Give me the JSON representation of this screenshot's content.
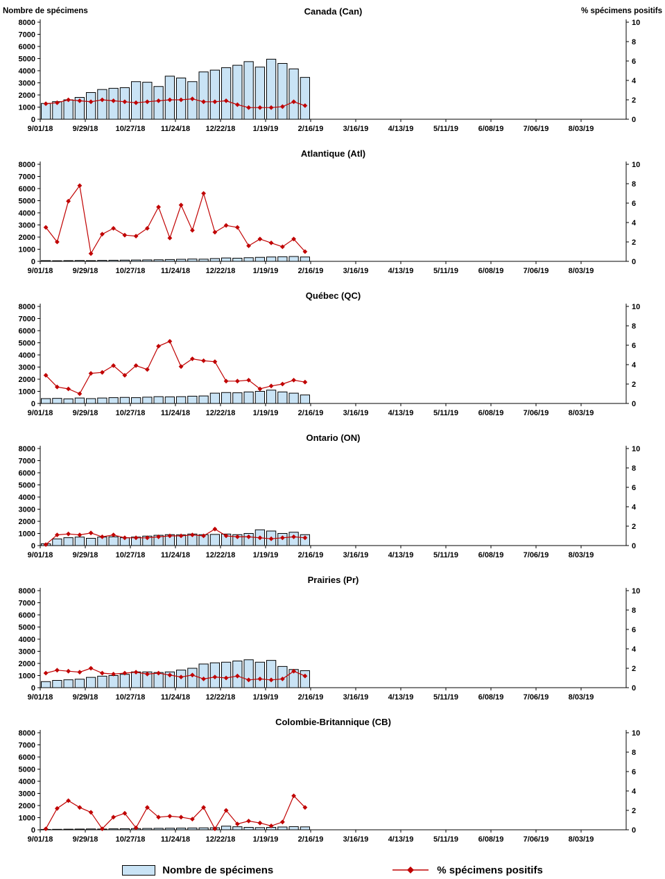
{
  "axis_titles": {
    "left": "Nombre de spécimens",
    "right": "% spécimens positifs"
  },
  "legend": {
    "bars_label": "Nombre de spécimens",
    "line_label": "% spécimens positifs"
  },
  "colors": {
    "bar_fill": "#C9E3F5",
    "bar_border": "#000000",
    "line": "#C00000"
  },
  "x_axis": {
    "tick_labels": [
      "9/01/18",
      "9/29/18",
      "10/27/18",
      "11/24/18",
      "12/22/18",
      "1/19/19",
      "2/16/19",
      "3/16/19",
      "4/13/19",
      "5/11/19",
      "6/08/19",
      "7/06/19",
      "8/03/19"
    ],
    "total_weeks": 52,
    "weeks_per_tick": 4
  },
  "left_axis": {
    "min": 0,
    "max": 8000,
    "step": 1000
  },
  "right_axis": {
    "min": 0,
    "max": 10,
    "step": 2
  },
  "categories_weekly": [
    "9/01/18",
    "9/08/18",
    "9/15/18",
    "9/22/18",
    "9/29/18",
    "10/06/18",
    "10/13/18",
    "10/20/18",
    "10/27/18",
    "11/03/18",
    "11/10/18",
    "11/17/18",
    "11/24/18",
    "12/01/18",
    "12/08/18",
    "12/15/18",
    "12/22/18",
    "12/29/18",
    "1/05/19",
    "1/12/19",
    "1/19/19",
    "1/26/19",
    "2/02/19",
    "2/09/19"
  ],
  "chart_data": [
    {
      "id": "canada",
      "type": "bar+line",
      "title": "Canada (Can)",
      "series": [
        {
          "name": "Nombre de spécimens",
          "axis": "left",
          "values": [
            1300,
            1450,
            1600,
            1800,
            2200,
            2450,
            2550,
            2600,
            3100,
            3050,
            2700,
            3550,
            3400,
            3100,
            3900,
            4050,
            4250,
            4450,
            4750,
            4300,
            4950,
            4600,
            4150,
            3450
          ]
        },
        {
          "name": "% spécimens positifs",
          "axis": "right",
          "values": [
            1.6,
            1.7,
            2.0,
            1.9,
            1.8,
            2.0,
            1.9,
            1.8,
            1.7,
            1.8,
            1.9,
            2.0,
            2.0,
            2.1,
            1.8,
            1.8,
            1.9,
            1.5,
            1.2,
            1.2,
            1.2,
            1.3,
            1.8,
            1.4
          ]
        }
      ]
    },
    {
      "id": "atlantique",
      "type": "bar+line",
      "title": "Atlantique (Atl)",
      "series": [
        {
          "name": "Nombre de spécimens",
          "axis": "left",
          "values": [
            60,
            50,
            60,
            70,
            60,
            80,
            90,
            100,
            110,
            120,
            130,
            150,
            170,
            190,
            180,
            230,
            280,
            260,
            300,
            330,
            360,
            380,
            400,
            360
          ]
        },
        {
          "name": "% spécimens positifs",
          "axis": "right",
          "values": [
            3.5,
            2.0,
            6.2,
            7.8,
            0.8,
            2.8,
            3.4,
            2.7,
            2.6,
            3.4,
            5.6,
            2.4,
            5.8,
            3.2,
            7.0,
            3.0,
            3.7,
            3.5,
            1.6,
            2.3,
            1.9,
            1.5,
            2.3,
            1.0
          ]
        }
      ]
    },
    {
      "id": "quebec",
      "type": "bar+line",
      "title": "Québec (QC)",
      "series": [
        {
          "name": "Nombre de spécimens",
          "axis": "left",
          "values": [
            400,
            420,
            380,
            450,
            400,
            450,
            480,
            500,
            480,
            520,
            560,
            540,
            560,
            600,
            620,
            850,
            900,
            880,
            950,
            1000,
            1100,
            950,
            850,
            700
          ]
        },
        {
          "name": "% spécimens positifs",
          "axis": "right",
          "values": [
            2.9,
            1.7,
            1.5,
            1.0,
            3.1,
            3.2,
            3.9,
            2.9,
            3.9,
            3.5,
            5.9,
            6.4,
            3.8,
            4.6,
            4.4,
            4.3,
            2.3,
            2.3,
            2.4,
            1.5,
            1.8,
            2.0,
            2.4,
            2.2
          ]
        }
      ]
    },
    {
      "id": "ontario",
      "type": "bar+line",
      "title": "Ontario (ON)",
      "series": [
        {
          "name": "Nombre de spécimens",
          "axis": "left",
          "values": [
            150,
            550,
            650,
            700,
            600,
            700,
            720,
            650,
            700,
            780,
            850,
            900,
            880,
            950,
            900,
            920,
            950,
            900,
            1000,
            1300,
            1200,
            1000,
            1100,
            900
          ]
        },
        {
          "name": "% spécimens positifs",
          "axis": "right",
          "values": [
            0.1,
            1.1,
            1.2,
            1.1,
            1.3,
            0.9,
            1.1,
            0.8,
            0.8,
            0.8,
            0.9,
            1.0,
            1.0,
            1.1,
            1.0,
            1.7,
            1.0,
            0.9,
            0.9,
            0.8,
            0.7,
            0.8,
            0.9,
            0.8
          ]
        }
      ]
    },
    {
      "id": "prairies",
      "type": "bar+line",
      "title": "Prairies (Pr)",
      "series": [
        {
          "name": "Nombre de spécimens",
          "axis": "left",
          "values": [
            500,
            600,
            650,
            700,
            850,
            950,
            1000,
            1100,
            1300,
            1300,
            1250,
            1300,
            1450,
            1600,
            1950,
            2050,
            2100,
            2200,
            2300,
            2100,
            2250,
            1750,
            1500,
            1400
          ]
        },
        {
          "name": "% spécimens positifs",
          "axis": "right",
          "values": [
            1.5,
            1.8,
            1.7,
            1.6,
            2.0,
            1.5,
            1.4,
            1.5,
            1.6,
            1.4,
            1.5,
            1.3,
            1.1,
            1.3,
            0.9,
            1.1,
            1.0,
            1.2,
            0.8,
            0.9,
            0.8,
            0.9,
            1.7,
            1.2
          ]
        }
      ]
    },
    {
      "id": "colombie-britannique",
      "type": "bar+line",
      "title": "Colombie-Britannique (CB)",
      "series": [
        {
          "name": "Nombre de spécimens",
          "axis": "left",
          "values": [
            30,
            40,
            50,
            60,
            70,
            60,
            80,
            90,
            100,
            110,
            120,
            130,
            140,
            150,
            160,
            170,
            300,
            250,
            200,
            180,
            200,
            230,
            260,
            240
          ]
        },
        {
          "name": "% spécimens positifs",
          "axis": "right",
          "values": [
            0.1,
            2.2,
            3.0,
            2.3,
            1.8,
            0.1,
            1.3,
            1.7,
            0.2,
            2.3,
            1.3,
            1.4,
            1.3,
            1.1,
            2.3,
            0.1,
            2.0,
            0.6,
            0.9,
            0.7,
            0.4,
            0.8,
            3.5,
            2.3
          ]
        }
      ]
    }
  ]
}
